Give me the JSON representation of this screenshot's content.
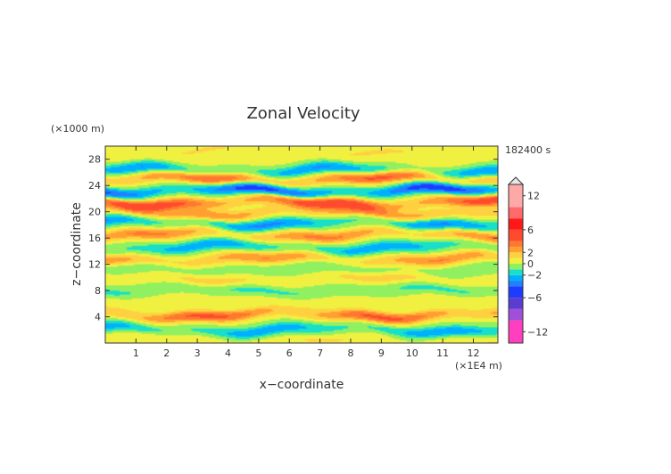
{
  "chart_data": {
    "type": "heatmap",
    "title": "Zonal Velocity",
    "xlabel": "x−coordinate",
    "ylabel": "z−coordinate",
    "x_unit": "(×1E4 m)",
    "y_unit": "(×1000 m)",
    "time_label": "182400 s",
    "xlim": [
      0,
      12.8
    ],
    "ylim": [
      0,
      30
    ],
    "x_ticks": [
      1,
      2,
      3,
      4,
      5,
      6,
      7,
      8,
      9,
      10,
      11,
      12
    ],
    "y_ticks": [
      4,
      8,
      12,
      16,
      20,
      24,
      28
    ],
    "x_tick_labels": [
      "1",
      "2",
      "3",
      "4",
      "5",
      "6",
      "7",
      "8",
      "9",
      "10",
      "11",
      "12"
    ],
    "y_tick_labels": [
      "4",
      "8",
      "12",
      "16",
      "20",
      "24",
      "28"
    ],
    "colorbar": {
      "range": [
        -14,
        14
      ],
      "ticks": [
        12,
        6,
        2,
        0,
        -2,
        -6,
        -12
      ],
      "tick_labels": [
        "12",
        "6",
        "2",
        "0",
        "−2",
        "−6",
        "−12"
      ],
      "levels": [
        {
          "from": -14,
          "to": -10,
          "color": "#ff3fc0"
        },
        {
          "from": -10,
          "to": -8,
          "color": "#a050d8"
        },
        {
          "from": -8,
          "to": -6,
          "color": "#5a3cd0"
        },
        {
          "from": -6,
          "to": -4,
          "color": "#1e3cff"
        },
        {
          "from": -4,
          "to": -3,
          "color": "#2080ff"
        },
        {
          "from": -3,
          "to": -2,
          "color": "#00b0ff"
        },
        {
          "from": -2,
          "to": -1,
          "color": "#18e0c8"
        },
        {
          "from": -1,
          "to": 0,
          "color": "#90f060"
        },
        {
          "from": 0,
          "to": 1,
          "color": "#f0f040"
        },
        {
          "from": 1,
          "to": 2,
          "color": "#ffd040"
        },
        {
          "from": 2,
          "to": 3,
          "color": "#ffa030"
        },
        {
          "from": 3,
          "to": 4,
          "color": "#ff7830"
        },
        {
          "from": 4,
          "to": 6,
          "color": "#ff4b2d"
        },
        {
          "from": 6,
          "to": 8,
          "color": "#ff1818"
        },
        {
          "from": 8,
          "to": 10,
          "color": "#ff6a6a"
        },
        {
          "from": 10,
          "to": 14,
          "color": "#ffa8a8"
        }
      ]
    },
    "field_bands": [
      {
        "z": 0.5,
        "amp": 1.0
      },
      {
        "z": 2.0,
        "amp": -2.6
      },
      {
        "z": 4.3,
        "amp": 4.0
      },
      {
        "z": 6.5,
        "amp": 0.8
      },
      {
        "z": 8.0,
        "amp": -1.3
      },
      {
        "z": 9.7,
        "amp": 1.4
      },
      {
        "z": 11.2,
        "amp": -0.9
      },
      {
        "z": 12.8,
        "amp": 2.8
      },
      {
        "z": 14.6,
        "amp": -2.6
      },
      {
        "z": 16.5,
        "amp": 3.0
      },
      {
        "z": 18.3,
        "amp": -3.0
      },
      {
        "z": 19.8,
        "amp": 2.8
      },
      {
        "z": 21.4,
        "amp": 4.8
      },
      {
        "z": 23.2,
        "amp": -4.5
      },
      {
        "z": 25.0,
        "amp": 4.0
      },
      {
        "z": 26.3,
        "amp": -2.8
      },
      {
        "z": 28.0,
        "amp": 0.6
      },
      {
        "z": 29.4,
        "amp": 1.0
      }
    ]
  }
}
